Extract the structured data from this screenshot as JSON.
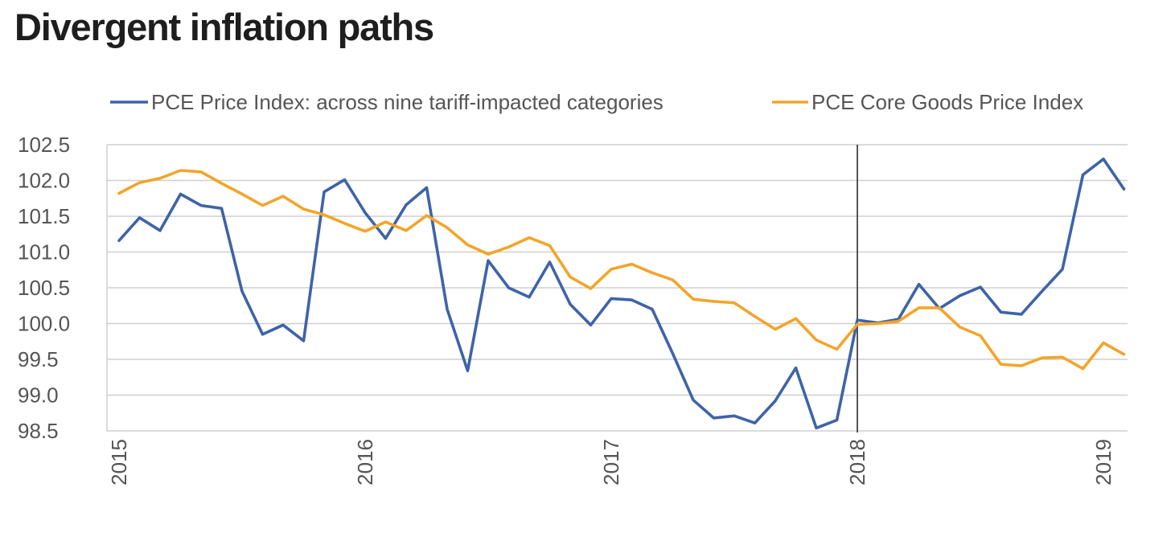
{
  "title": "Divergent inflation paths",
  "colors": {
    "series_a": "#3e63a8",
    "series_b": "#f2a52b",
    "grid": "#cfcfcf",
    "marker": "#555555",
    "text": "#555555"
  },
  "chart_data": {
    "type": "line",
    "title": "Divergent inflation paths",
    "xlabel": "",
    "ylabel": "",
    "xlim": [
      "2015-01",
      "2019-02"
    ],
    "ylim": [
      98.5,
      102.5
    ],
    "y_ticks": [
      "102.5",
      "102.0",
      "101.5",
      "101.0",
      "100.5",
      "100.0",
      "99.5",
      "99.0",
      "98.5"
    ],
    "x_ticks": [
      "2015",
      "2016",
      "2017",
      "2018",
      "2019"
    ],
    "grid": "horizontal",
    "legend_position": "top",
    "vertical_marker": "2018-01",
    "x": [
      "2015-01",
      "2015-02",
      "2015-03",
      "2015-04",
      "2015-05",
      "2015-06",
      "2015-07",
      "2015-08",
      "2015-09",
      "2015-10",
      "2015-11",
      "2015-12",
      "2016-01",
      "2016-02",
      "2016-03",
      "2016-04",
      "2016-05",
      "2016-06",
      "2016-07",
      "2016-08",
      "2016-09",
      "2016-10",
      "2016-11",
      "2016-12",
      "2017-01",
      "2017-02",
      "2017-03",
      "2017-04",
      "2017-05",
      "2017-06",
      "2017-07",
      "2017-08",
      "2017-09",
      "2017-10",
      "2017-11",
      "2017-12",
      "2018-01",
      "2018-02",
      "2018-03",
      "2018-04",
      "2018-05",
      "2018-06",
      "2018-07",
      "2018-08",
      "2018-09",
      "2018-10",
      "2018-11",
      "2018-12",
      "2019-01",
      "2019-02"
    ],
    "series": [
      {
        "name": "PCE Price Index: across nine tariff-impacted categories",
        "values": [
          101.16,
          101.48,
          101.3,
          101.81,
          101.65,
          101.61,
          100.45,
          99.85,
          99.98,
          99.76,
          101.84,
          102.01,
          101.55,
          101.19,
          101.66,
          101.9,
          100.2,
          99.34,
          100.88,
          100.5,
          100.37,
          100.86,
          100.27,
          99.98,
          100.35,
          100.33,
          100.2,
          99.58,
          98.93,
          98.68,
          98.71,
          98.61,
          98.92,
          99.38,
          98.54,
          98.65,
          100.05,
          100.01,
          100.06,
          100.55,
          100.21,
          100.39,
          100.51,
          100.16,
          100.13,
          100.45,
          100.76,
          102.08,
          102.3,
          101.88
        ]
      },
      {
        "name": "PCE Core Goods Price Index",
        "values": [
          101.82,
          101.97,
          102.03,
          102.14,
          102.12,
          101.96,
          101.81,
          101.65,
          101.78,
          101.6,
          101.52,
          101.4,
          101.29,
          101.42,
          101.3,
          101.51,
          101.34,
          101.1,
          100.97,
          101.07,
          101.2,
          101.09,
          100.65,
          100.49,
          100.76,
          100.83,
          100.71,
          100.61,
          100.34,
          100.31,
          100.29,
          100.1,
          99.92,
          100.07,
          99.77,
          99.64,
          99.99,
          100.0,
          100.03,
          100.22,
          100.22,
          99.95,
          99.83,
          99.43,
          99.41,
          99.52,
          99.53,
          99.37,
          99.73,
          99.57
        ]
      }
    ]
  }
}
